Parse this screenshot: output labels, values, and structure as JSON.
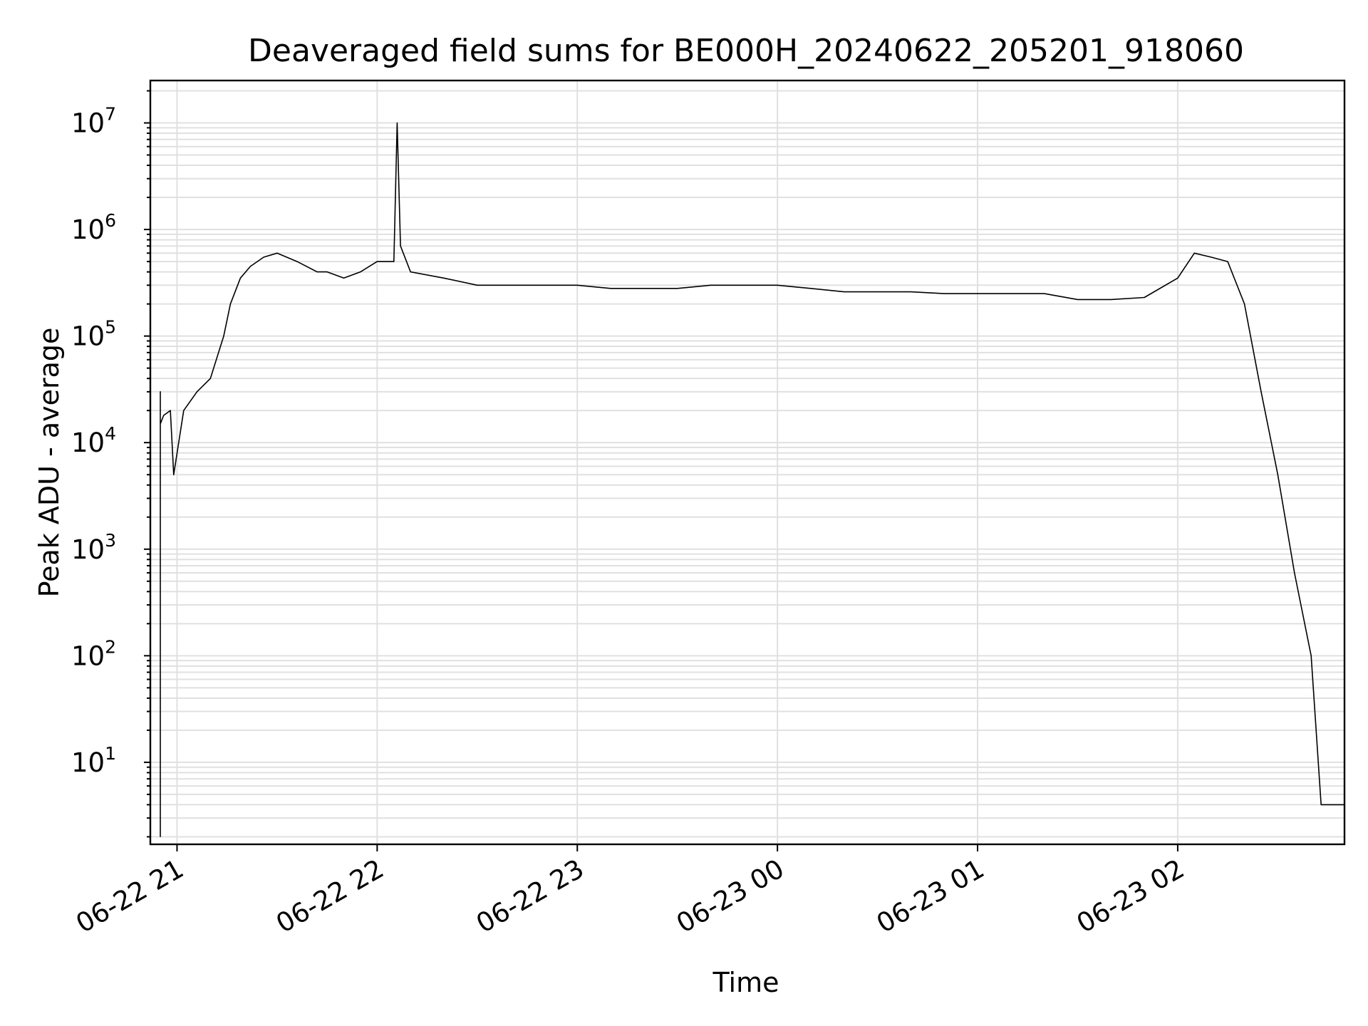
{
  "chart_data": {
    "type": "line",
    "title": "Deaveraged field sums for BE000H_20240622_205201_918060",
    "xlabel": "Time",
    "ylabel": "Peak ADU - average",
    "y_scale": "log",
    "ylim": [
      1.7,
      25000000
    ],
    "xlim": [
      "2024-06-22 20:52",
      "2024-06-23 02:50"
    ],
    "grid": true,
    "legend": "none",
    "line_color": "#000000",
    "grid_color": "#e0e0e0",
    "x_ticks": [
      {
        "value": "2024-06-22 21:00",
        "label": "06-22 21"
      },
      {
        "value": "2024-06-22 22:00",
        "label": "06-22 22"
      },
      {
        "value": "2024-06-22 23:00",
        "label": "06-22 23"
      },
      {
        "value": "2024-06-23 00:00",
        "label": "06-23 00"
      },
      {
        "value": "2024-06-23 01:00",
        "label": "06-23 01"
      },
      {
        "value": "2024-06-23 02:00",
        "label": "06-23 02"
      }
    ],
    "y_ticks": [
      {
        "value": 10,
        "base": "10",
        "exp": "1"
      },
      {
        "value": 100,
        "base": "10",
        "exp": "2"
      },
      {
        "value": 1000,
        "base": "10",
        "exp": "3"
      },
      {
        "value": 10000,
        "base": "10",
        "exp": "4"
      },
      {
        "value": 100000,
        "base": "10",
        "exp": "5"
      },
      {
        "value": 1000000,
        "base": "10",
        "exp": "6"
      },
      {
        "value": 10000000,
        "base": "10",
        "exp": "7"
      }
    ],
    "series": [
      {
        "x": [
          "2024-06-22 20:55",
          "2024-06-22 20:55",
          "2024-06-22 20:55",
          "2024-06-22 20:56",
          "2024-06-22 20:58",
          "2024-06-22 20:59",
          "2024-06-22 21:02",
          "2024-06-22 21:06",
          "2024-06-22 21:10",
          "2024-06-22 21:14",
          "2024-06-22 21:16",
          "2024-06-22 21:19",
          "2024-06-22 21:22",
          "2024-06-22 21:26",
          "2024-06-22 21:30",
          "2024-06-22 21:36",
          "2024-06-22 21:42",
          "2024-06-22 21:45",
          "2024-06-22 21:50",
          "2024-06-22 21:55",
          "2024-06-22 22:00",
          "2024-06-22 22:05",
          "2024-06-22 22:06",
          "2024-06-22 22:07",
          "2024-06-22 22:10",
          "2024-06-22 22:20",
          "2024-06-22 22:30",
          "2024-06-22 22:40",
          "2024-06-22 22:50",
          "2024-06-22 23:00",
          "2024-06-22 23:10",
          "2024-06-22 23:20",
          "2024-06-22 23:30",
          "2024-06-22 23:40",
          "2024-06-22 23:50",
          "2024-06-23 00:00",
          "2024-06-23 00:10",
          "2024-06-23 00:20",
          "2024-06-23 00:30",
          "2024-06-23 00:40",
          "2024-06-23 00:50",
          "2024-06-23 01:00",
          "2024-06-23 01:10",
          "2024-06-23 01:20",
          "2024-06-23 01:30",
          "2024-06-23 01:40",
          "2024-06-23 01:50",
          "2024-06-23 02:00",
          "2024-06-23 02:05",
          "2024-06-23 02:10",
          "2024-06-23 02:15",
          "2024-06-23 02:20",
          "2024-06-23 02:25",
          "2024-06-23 02:30",
          "2024-06-23 02:35",
          "2024-06-23 02:40",
          "2024-06-23 02:43",
          "2024-06-23 02:45",
          "2024-06-23 02:45",
          "2024-06-23 02:46",
          "2024-06-23 02:50"
        ],
        "y": [
          2,
          30000,
          15000,
          18000,
          20000,
          5000,
          20000,
          30000,
          40000,
          100000,
          200000,
          350000,
          450000,
          550000,
          600000,
          500000,
          400000,
          400000,
          350000,
          400000,
          500000,
          500000,
          10000000,
          700000,
          400000,
          350000,
          300000,
          300000,
          300000,
          300000,
          280000,
          280000,
          280000,
          300000,
          300000,
          300000,
          280000,
          260000,
          260000,
          260000,
          250000,
          250000,
          250000,
          250000,
          220000,
          220000,
          230000,
          350000,
          600000,
          550000,
          500000,
          200000,
          30000,
          5000,
          600,
          100,
          4,
          4,
          4,
          4,
          4
        ]
      }
    ]
  }
}
